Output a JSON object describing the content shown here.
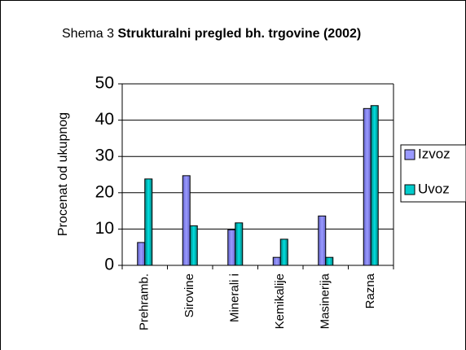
{
  "chart_data": {
    "type": "bar",
    "title_prefix": "Shema 3",
    "title": "Strukturalni pregled bh. trgovine (2002)",
    "ylabel": "Procenat od ukupnog",
    "categories": [
      "Prehramb.",
      "Sirovine",
      "Minerali i",
      "Kemikalije",
      "Masinerija",
      "Razna"
    ],
    "series": [
      {
        "name": "Izvoz",
        "color": "#9999ff",
        "values": [
          6.3,
          24.7,
          9.8,
          2.2,
          13.6,
          43.2
        ]
      },
      {
        "name": "Uvoz",
        "color": "#00cccc",
        "values": [
          23.8,
          10.9,
          11.7,
          7.2,
          2.2,
          44.0
        ]
      }
    ],
    "ylim": [
      0,
      50
    ],
    "yticks": [
      0,
      10,
      20,
      30,
      40,
      50
    ],
    "grid": true,
    "legend": "right"
  }
}
